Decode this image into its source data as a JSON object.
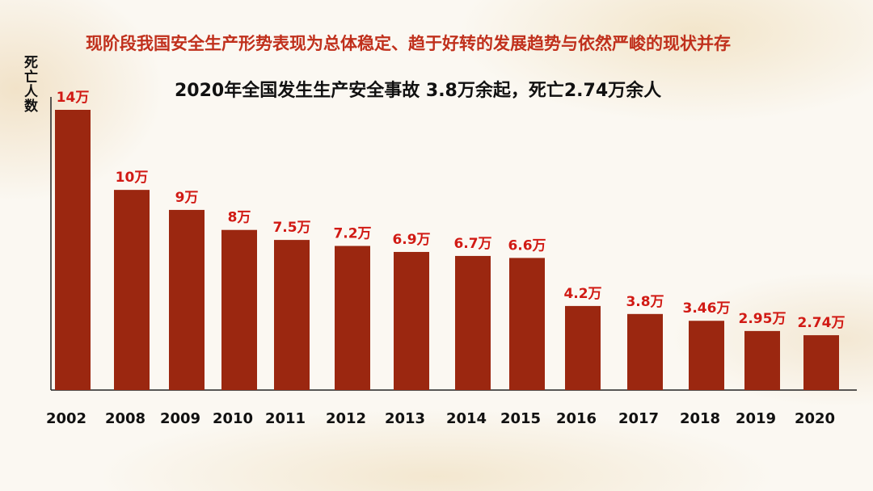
{
  "header": {
    "headline": "现阶段我国安全生产形势表现为总体稳定、趋于好转的发展趋势与依然严峻的现状并存",
    "subtitle": "2020年全国发生生产安全事故 3.8万余起，死亡2.74万余人"
  },
  "colors": {
    "bar": "#9b2710",
    "value_label": "#d11a14",
    "headline": "#c0301c"
  },
  "chart_data": {
    "type": "bar",
    "title": "2020年全国发生生产安全事故 3.8万余起，死亡2.74万余人",
    "ylabel": "死亡人数",
    "xlabel": "",
    "ylim": [
      0,
      14
    ],
    "grid": false,
    "legend": "none",
    "categories": [
      "2002",
      "2008",
      "2009",
      "2010",
      "2011",
      "2012",
      "2013",
      "2014",
      "2015",
      "2016",
      "2017",
      "2018",
      "2019",
      "2020"
    ],
    "values": [
      14,
      10,
      9,
      8,
      7.5,
      7.2,
      6.9,
      6.7,
      6.6,
      4.2,
      3.8,
      3.46,
      2.95,
      2.74
    ],
    "value_labels": [
      "14万",
      "10万",
      "9万",
      "8万",
      "7.5万",
      "7.2万",
      "6.9万",
      "6.7万",
      "6.6万",
      "4.2万",
      "3.8万",
      "3.46万",
      "2.95万",
      "2.74万"
    ],
    "unit": "万"
  }
}
